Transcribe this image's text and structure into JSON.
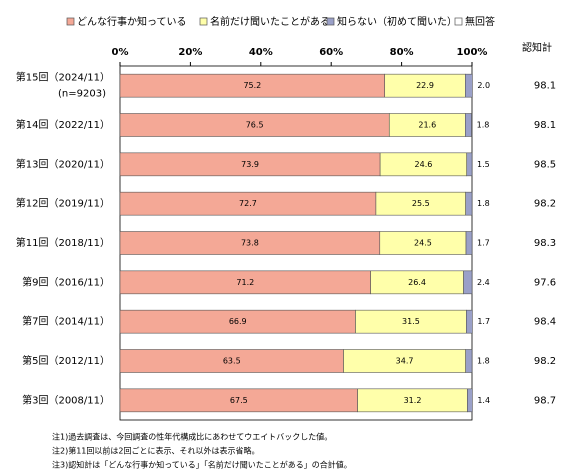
{
  "chart_data": {
    "type": "stacked-bar-horizontal",
    "categories": [
      "第15回（2024/11）",
      "第14回（2022/11）",
      "第13回（2020/11）",
      "第12回（2019/11）",
      "第11回（2018/11）",
      "第9回（2016/11）",
      "第7回（2014/11）",
      "第5回（2012/11）",
      "第3回（2008/11）"
    ],
    "sample_size": "(n=9203)",
    "series": [
      {
        "name": "どんな行事か知っている",
        "color": "#f4a896",
        "values": [
          75.2,
          76.5,
          73.9,
          72.7,
          73.8,
          71.2,
          66.9,
          63.5,
          67.5
        ]
      },
      {
        "name": "名前だけ聞いたことがある",
        "color": "#ffffaa",
        "values": [
          22.9,
          21.6,
          24.6,
          25.5,
          24.5,
          26.4,
          31.5,
          34.7,
          31.2
        ]
      },
      {
        "name": "知らない（初めて聞いた）",
        "color": "#9aa0c8",
        "values": [
          2.0,
          1.8,
          1.5,
          1.8,
          1.7,
          2.4,
          1.7,
          1.8,
          1.4
        ],
        "value_labels": [
          "2.0",
          "1.8",
          "1.5",
          "1.8",
          "1.7",
          "2.4",
          "1.7",
          "1.8",
          "1.4"
        ]
      },
      {
        "name": "無回答",
        "color": "#ffffff",
        "values": [
          0,
          0.1,
          0,
          0,
          0,
          0,
          0,
          0,
          0
        ]
      }
    ],
    "xlim": [
      0,
      100
    ],
    "xticks": [
      {
        "value": 0,
        "label": "0%"
      },
      {
        "value": 20,
        "label": "20%"
      },
      {
        "value": 40,
        "label": "40%"
      },
      {
        "value": 60,
        "label": "60%"
      },
      {
        "value": 80,
        "label": "80%"
      },
      {
        "value": 100,
        "label": "100%"
      }
    ],
    "recognition": {
      "title": "認知計",
      "values": [
        98.1,
        98.1,
        98.5,
        98.2,
        98.3,
        97.6,
        98.4,
        98.2,
        98.7
      ]
    },
    "notes": [
      "注1)過去調査は、今回調査の性年代構成比にあわせてウエイトバックした値。",
      "注2)第11回以前は2回ごとに表示、それ以外は表示省略。",
      "注3)認知計は「どんな行事か知っている」「名前だけ聞いたことがある」の合計値。"
    ]
  }
}
